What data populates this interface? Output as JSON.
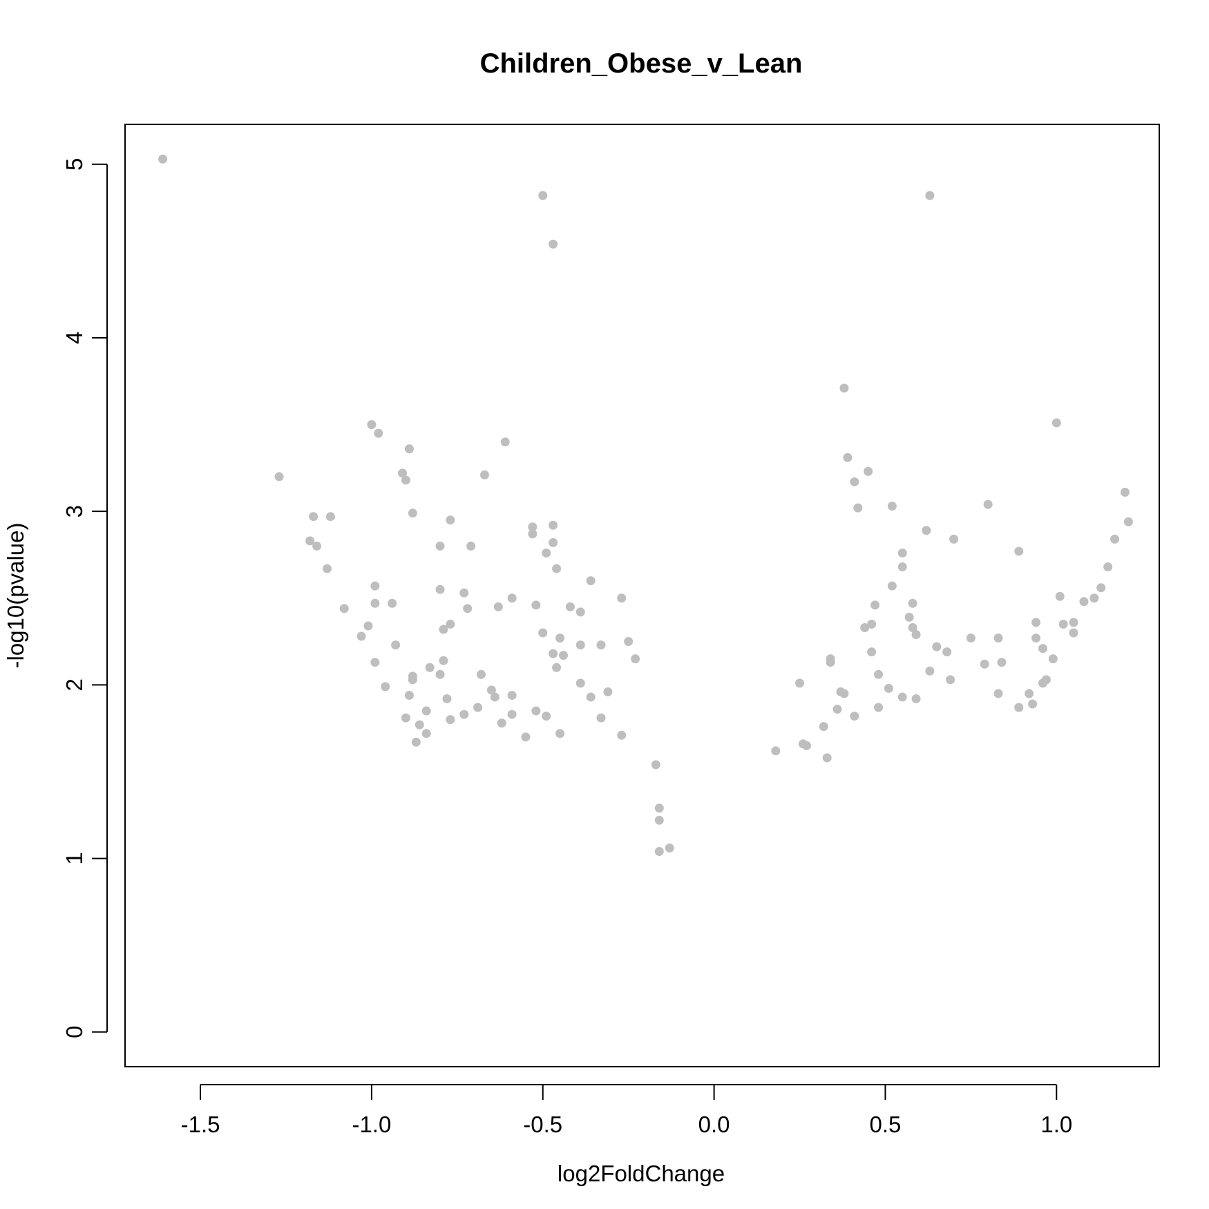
{
  "chart_data": {
    "type": "scatter",
    "title": "Children_Obese_v_Lean",
    "xlabel": "log2FoldChange",
    "ylabel": "-log10(pvalue)",
    "xlim": [
      -1.72,
      1.3
    ],
    "ylim": [
      -0.2,
      5.23
    ],
    "x_ticks": [
      -1.5,
      -1.0,
      -0.5,
      0.0,
      0.5,
      1.0
    ],
    "x_tick_labels": [
      "-1.5",
      "-1.0",
      "-0.5",
      "0.0",
      "0.5",
      "1.0"
    ],
    "y_ticks": [
      0,
      1,
      2,
      3,
      4,
      5
    ],
    "y_tick_labels": [
      "0",
      "1",
      "2",
      "3",
      "4",
      "5"
    ],
    "grid": false,
    "point_color": "#bebebe",
    "series": [
      {
        "values": [
          [
            -1.61,
            5.03
          ],
          [
            -0.5,
            4.82
          ],
          [
            -0.47,
            4.54
          ],
          [
            0.63,
            4.82
          ],
          [
            -1.27,
            3.2
          ],
          [
            -1.0,
            3.5
          ],
          [
            -0.98,
            3.45
          ],
          [
            -0.89,
            3.36
          ],
          [
            -0.91,
            3.22
          ],
          [
            -0.9,
            3.18
          ],
          [
            -0.88,
            2.99
          ],
          [
            -1.17,
            2.97
          ],
          [
            -1.12,
            2.97
          ],
          [
            -1.18,
            2.83
          ],
          [
            -1.16,
            2.8
          ],
          [
            -1.13,
            2.67
          ],
          [
            -0.99,
            2.57
          ],
          [
            -0.99,
            2.47
          ],
          [
            -0.94,
            2.47
          ],
          [
            -1.08,
            2.44
          ],
          [
            -1.01,
            2.34
          ],
          [
            -1.03,
            2.28
          ],
          [
            -0.93,
            2.23
          ],
          [
            -0.99,
            2.13
          ],
          [
            -0.96,
            1.99
          ],
          [
            -0.88,
            2.05
          ],
          [
            -0.88,
            2.03
          ],
          [
            -0.83,
            2.1
          ],
          [
            -0.8,
            2.06
          ],
          [
            -0.79,
            2.14
          ],
          [
            -0.61,
            3.4
          ],
          [
            -0.67,
            3.21
          ],
          [
            -0.77,
            2.95
          ],
          [
            -0.8,
            2.8
          ],
          [
            -0.71,
            2.8
          ],
          [
            -0.8,
            2.55
          ],
          [
            -0.73,
            2.53
          ],
          [
            -0.72,
            2.44
          ],
          [
            -0.79,
            2.32
          ],
          [
            -0.77,
            2.35
          ],
          [
            -0.68,
            2.06
          ],
          [
            -0.63,
            2.45
          ],
          [
            -0.59,
            2.5
          ],
          [
            -0.53,
            2.91
          ],
          [
            -0.53,
            2.87
          ],
          [
            -0.47,
            2.92
          ],
          [
            -0.47,
            2.82
          ],
          [
            -0.49,
            2.76
          ],
          [
            -0.46,
            2.67
          ],
          [
            -0.36,
            2.6
          ],
          [
            -0.27,
            2.5
          ],
          [
            -0.42,
            2.45
          ],
          [
            -0.39,
            2.42
          ],
          [
            -0.52,
            2.46
          ],
          [
            -0.5,
            2.3
          ],
          [
            -0.45,
            2.27
          ],
          [
            -0.39,
            2.23
          ],
          [
            -0.33,
            2.23
          ],
          [
            -0.25,
            2.25
          ],
          [
            -0.47,
            2.18
          ],
          [
            -0.44,
            2.17
          ],
          [
            -0.23,
            2.15
          ],
          [
            -0.46,
            2.1
          ],
          [
            -0.39,
            2.01
          ],
          [
            -0.31,
            1.96
          ],
          [
            -0.36,
            1.93
          ],
          [
            -0.27,
            1.71
          ],
          [
            -0.33,
            1.81
          ],
          [
            -0.17,
            1.54
          ],
          [
            -0.16,
            1.29
          ],
          [
            -0.16,
            1.22
          ],
          [
            -0.13,
            1.06
          ],
          [
            -0.16,
            1.04
          ],
          [
            -0.55,
            1.7
          ],
          [
            -0.52,
            1.85
          ],
          [
            -0.49,
            1.82
          ],
          [
            -0.45,
            1.72
          ],
          [
            -0.65,
            1.97
          ],
          [
            -0.64,
            1.93
          ],
          [
            -0.59,
            1.94
          ],
          [
            -0.59,
            1.83
          ],
          [
            -0.69,
            1.87
          ],
          [
            -0.62,
            1.78
          ],
          [
            -0.73,
            1.83
          ],
          [
            -0.77,
            1.8
          ],
          [
            -0.86,
            1.77
          ],
          [
            -0.9,
            1.81
          ],
          [
            -0.84,
            1.85
          ],
          [
            -0.89,
            1.94
          ],
          [
            -0.78,
            1.92
          ],
          [
            -0.84,
            1.72
          ],
          [
            -0.87,
            1.67
          ],
          [
            0.38,
            3.71
          ],
          [
            0.39,
            3.31
          ],
          [
            0.41,
            3.17
          ],
          [
            0.45,
            3.23
          ],
          [
            0.42,
            3.02
          ],
          [
            0.52,
            3.03
          ],
          [
            0.62,
            2.89
          ],
          [
            0.7,
            2.84
          ],
          [
            0.8,
            3.04
          ],
          [
            1.0,
            3.51
          ],
          [
            1.2,
            3.11
          ],
          [
            1.21,
            2.94
          ],
          [
            0.89,
            2.77
          ],
          [
            1.17,
            2.84
          ],
          [
            1.15,
            2.68
          ],
          [
            1.13,
            2.56
          ],
          [
            1.11,
            2.5
          ],
          [
            1.08,
            2.48
          ],
          [
            1.01,
            2.51
          ],
          [
            1.05,
            2.36
          ],
          [
            1.02,
            2.35
          ],
          [
            1.05,
            2.3
          ],
          [
            0.94,
            2.36
          ],
          [
            0.96,
            2.21
          ],
          [
            0.94,
            2.27
          ],
          [
            0.99,
            2.15
          ],
          [
            0.97,
            2.03
          ],
          [
            0.96,
            2.01
          ],
          [
            0.92,
            1.95
          ],
          [
            0.55,
            2.76
          ],
          [
            0.55,
            2.68
          ],
          [
            0.52,
            2.57
          ],
          [
            0.58,
            2.47
          ],
          [
            0.57,
            2.39
          ],
          [
            0.58,
            2.33
          ],
          [
            0.59,
            2.29
          ],
          [
            0.47,
            2.46
          ],
          [
            0.46,
            2.35
          ],
          [
            0.44,
            2.33
          ],
          [
            0.46,
            2.19
          ],
          [
            0.34,
            2.15
          ],
          [
            0.34,
            2.13
          ],
          [
            0.25,
            2.01
          ],
          [
            0.37,
            1.96
          ],
          [
            0.38,
            1.95
          ],
          [
            0.65,
            2.22
          ],
          [
            0.68,
            2.19
          ],
          [
            0.63,
            2.08
          ],
          [
            0.69,
            2.03
          ],
          [
            0.75,
            2.27
          ],
          [
            0.83,
            2.27
          ],
          [
            0.84,
            2.13
          ],
          [
            0.79,
            2.12
          ],
          [
            0.83,
            1.95
          ],
          [
            0.89,
            1.87
          ],
          [
            0.93,
            1.89
          ],
          [
            0.51,
            1.98
          ],
          [
            0.55,
            1.93
          ],
          [
            0.59,
            1.92
          ],
          [
            0.48,
            2.06
          ],
          [
            0.41,
            1.82
          ],
          [
            0.48,
            1.87
          ],
          [
            0.36,
            1.86
          ],
          [
            0.32,
            1.76
          ],
          [
            0.18,
            1.62
          ],
          [
            0.27,
            1.65
          ],
          [
            0.26,
            1.66
          ],
          [
            0.33,
            1.58
          ]
        ]
      }
    ]
  }
}
